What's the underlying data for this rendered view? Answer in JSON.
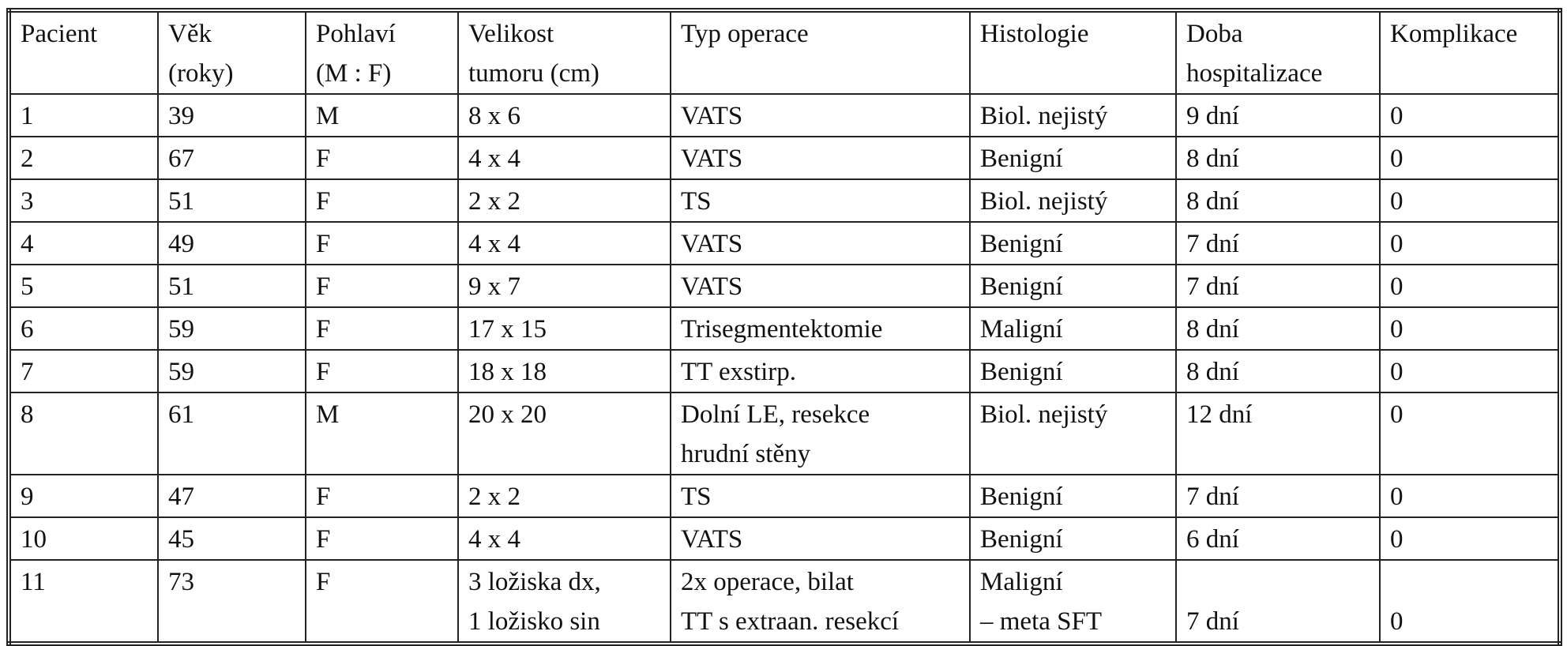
{
  "table": {
    "header": [
      [
        "Pacient"
      ],
      [
        "Věk",
        "(roky)"
      ],
      [
        "Pohlaví",
        "(M : F)"
      ],
      [
        "Velikost",
        "tumoru (cm)"
      ],
      [
        "Typ operace"
      ],
      [
        "Histologie"
      ],
      [
        "Doba",
        "hospitalizace"
      ],
      [
        "Komplikace"
      ]
    ],
    "rows": [
      [
        [
          "1"
        ],
        [
          "39"
        ],
        [
          "M"
        ],
        [
          "8 x 6"
        ],
        [
          "VATS"
        ],
        [
          "Biol. nejistý"
        ],
        [
          "9 dní"
        ],
        [
          "0"
        ]
      ],
      [
        [
          "2"
        ],
        [
          "67"
        ],
        [
          "F"
        ],
        [
          "4 x 4"
        ],
        [
          "VATS"
        ],
        [
          "Benigní"
        ],
        [
          "8 dní"
        ],
        [
          "0"
        ]
      ],
      [
        [
          "3"
        ],
        [
          "51"
        ],
        [
          "F"
        ],
        [
          "2 x 2"
        ],
        [
          "TS"
        ],
        [
          "Biol. nejistý"
        ],
        [
          "8 dní"
        ],
        [
          "0"
        ]
      ],
      [
        [
          "4"
        ],
        [
          "49"
        ],
        [
          "F"
        ],
        [
          "4 x 4"
        ],
        [
          "VATS"
        ],
        [
          "Benigní"
        ],
        [
          "7 dní"
        ],
        [
          "0"
        ]
      ],
      [
        [
          "5"
        ],
        [
          "51"
        ],
        [
          "F"
        ],
        [
          "9 x 7"
        ],
        [
          "VATS"
        ],
        [
          "Benigní"
        ],
        [
          "7 dní"
        ],
        [
          "0"
        ]
      ],
      [
        [
          "6"
        ],
        [
          "59"
        ],
        [
          "F"
        ],
        [
          "17 x 15"
        ],
        [
          "Trisegmentektomie"
        ],
        [
          "Maligní"
        ],
        [
          "8 dní"
        ],
        [
          "0"
        ]
      ],
      [
        [
          "7"
        ],
        [
          "59"
        ],
        [
          "F"
        ],
        [
          "18 x 18"
        ],
        [
          "TT exstirp."
        ],
        [
          "Benigní"
        ],
        [
          "8 dní"
        ],
        [
          "0"
        ]
      ],
      [
        [
          "8"
        ],
        [
          "61"
        ],
        [
          "M"
        ],
        [
          "20 x 20"
        ],
        [
          "Dolní LE, resekce",
          "hrudní stěny"
        ],
        [
          "Biol. nejistý"
        ],
        [
          "12 dní"
        ],
        [
          "0"
        ]
      ],
      [
        [
          "9"
        ],
        [
          "47"
        ],
        [
          "F"
        ],
        [
          "2 x 2"
        ],
        [
          "TS"
        ],
        [
          "Benigní"
        ],
        [
          "7 dní"
        ],
        [
          "0"
        ]
      ],
      [
        [
          "10"
        ],
        [
          "45"
        ],
        [
          "F"
        ],
        [
          "4 x 4"
        ],
        [
          "VATS"
        ],
        [
          "Benigní"
        ],
        [
          "6 dní"
        ],
        [
          "0"
        ]
      ],
      [
        [
          "11"
        ],
        [
          "73"
        ],
        [
          "F"
        ],
        [
          "3 ložiska dx,",
          "1 ložisko sin"
        ],
        [
          "2x operace, bilat",
          "TT s extraan. resekcí"
        ],
        [
          "Maligní",
          "– meta SFT"
        ],
        [
          "7 dní"
        ],
        [
          "0"
        ]
      ]
    ]
  }
}
